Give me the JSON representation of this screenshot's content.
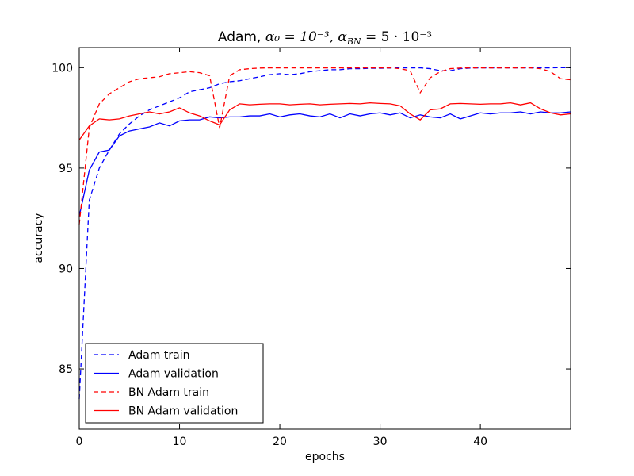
{
  "chart_data": {
    "type": "line",
    "title": "Adam, α₀ = 10⁻³,  α_BN = 5 · 10⁻³",
    "title_parts": {
      "prefix": "Adam, ",
      "math": "α₀ = 10⁻³,  α",
      "sub": "BN",
      "suffix": " = 5 · 10⁻³"
    },
    "xlabel": "epochs",
    "ylabel": "accuracy",
    "xlim": [
      0,
      49
    ],
    "ylim": [
      82,
      101
    ],
    "xticks": [
      0,
      10,
      20,
      30,
      40
    ],
    "yticks": [
      85,
      90,
      95,
      100
    ],
    "grid": false,
    "legend_position": "lower-left",
    "series": [
      {
        "name": "Adam train",
        "color": "#0000ff",
        "style": "dashed",
        "x": [
          0,
          1,
          2,
          3,
          4,
          5,
          6,
          7,
          8,
          9,
          10,
          11,
          12,
          13,
          14,
          15,
          16,
          17,
          18,
          19,
          20,
          21,
          22,
          23,
          24,
          25,
          26,
          27,
          28,
          29,
          30,
          31,
          32,
          33,
          34,
          35,
          36,
          37,
          38,
          39,
          40,
          41,
          42,
          43,
          44,
          45,
          46,
          47,
          48,
          49
        ],
        "values": [
          83.5,
          93.4,
          95.0,
          95.9,
          96.7,
          97.2,
          97.6,
          97.9,
          98.1,
          98.3,
          98.5,
          98.8,
          98.9,
          99.0,
          99.2,
          99.3,
          99.35,
          99.45,
          99.55,
          99.65,
          99.7,
          99.65,
          99.7,
          99.8,
          99.85,
          99.9,
          99.9,
          99.95,
          99.95,
          99.97,
          99.97,
          99.98,
          99.99,
          99.99,
          99.99,
          99.95,
          99.85,
          99.85,
          99.95,
          99.98,
          99.99,
          99.99,
          99.99,
          99.99,
          99.99,
          99.99,
          99.99,
          99.99,
          100.0,
          100.0
        ]
      },
      {
        "name": "Adam validation",
        "color": "#0000ff",
        "style": "solid",
        "x": [
          0,
          1,
          2,
          3,
          4,
          5,
          6,
          7,
          8,
          9,
          10,
          11,
          12,
          13,
          14,
          15,
          16,
          17,
          18,
          19,
          20,
          21,
          22,
          23,
          24,
          25,
          26,
          27,
          28,
          29,
          30,
          31,
          32,
          33,
          34,
          35,
          36,
          37,
          38,
          39,
          40,
          41,
          42,
          43,
          44,
          45,
          46,
          47,
          48,
          49
        ],
        "values": [
          92.6,
          94.9,
          95.8,
          95.9,
          96.6,
          96.85,
          96.95,
          97.05,
          97.25,
          97.1,
          97.35,
          97.4,
          97.4,
          97.55,
          97.5,
          97.55,
          97.55,
          97.6,
          97.6,
          97.7,
          97.55,
          97.65,
          97.7,
          97.6,
          97.55,
          97.7,
          97.5,
          97.7,
          97.6,
          97.7,
          97.75,
          97.65,
          97.75,
          97.5,
          97.65,
          97.55,
          97.5,
          97.7,
          97.45,
          97.6,
          97.75,
          97.7,
          97.75,
          97.75,
          97.8,
          97.7,
          97.8,
          97.75,
          97.75,
          97.8
        ]
      },
      {
        "name": "BN Adam train",
        "color": "#ff0000",
        "style": "dashed",
        "x": [
          0,
          1,
          2,
          3,
          4,
          5,
          6,
          7,
          8,
          9,
          10,
          11,
          12,
          13,
          14,
          15,
          16,
          17,
          18,
          19,
          20,
          21,
          22,
          23,
          24,
          25,
          26,
          27,
          28,
          29,
          30,
          31,
          32,
          33,
          34,
          35,
          36,
          37,
          38,
          39,
          40,
          41,
          42,
          43,
          44,
          45,
          46,
          47,
          48,
          49
        ],
        "values": [
          92.2,
          97.0,
          98.2,
          98.7,
          99.0,
          99.3,
          99.45,
          99.5,
          99.55,
          99.7,
          99.75,
          99.8,
          99.75,
          99.6,
          97.0,
          99.6,
          99.9,
          99.95,
          99.98,
          99.99,
          99.99,
          99.99,
          99.99,
          99.99,
          99.99,
          99.99,
          99.99,
          99.99,
          99.99,
          99.99,
          99.99,
          99.99,
          99.95,
          99.85,
          98.75,
          99.5,
          99.8,
          99.95,
          99.98,
          99.99,
          99.99,
          99.99,
          99.99,
          99.99,
          99.99,
          99.99,
          99.95,
          99.8,
          99.45,
          99.4
        ]
      },
      {
        "name": "BN Adam validation",
        "color": "#ff0000",
        "style": "solid",
        "x": [
          0,
          1,
          2,
          3,
          4,
          5,
          6,
          7,
          8,
          9,
          10,
          11,
          12,
          13,
          14,
          15,
          16,
          17,
          18,
          19,
          20,
          21,
          22,
          23,
          24,
          25,
          26,
          27,
          28,
          29,
          30,
          31,
          32,
          33,
          34,
          35,
          36,
          37,
          38,
          39,
          40,
          41,
          42,
          43,
          44,
          45,
          46,
          47,
          48,
          49
        ],
        "values": [
          96.4,
          97.1,
          97.45,
          97.4,
          97.45,
          97.6,
          97.7,
          97.8,
          97.7,
          97.8,
          98.0,
          97.75,
          97.6,
          97.35,
          97.15,
          97.9,
          98.2,
          98.15,
          98.18,
          98.2,
          98.2,
          98.15,
          98.18,
          98.2,
          98.15,
          98.18,
          98.2,
          98.22,
          98.2,
          98.25,
          98.22,
          98.2,
          98.1,
          97.7,
          97.4,
          97.9,
          97.95,
          98.2,
          98.22,
          98.2,
          98.18,
          98.2,
          98.2,
          98.25,
          98.15,
          98.25,
          97.95,
          97.75,
          97.65,
          97.7
        ]
      }
    ]
  }
}
